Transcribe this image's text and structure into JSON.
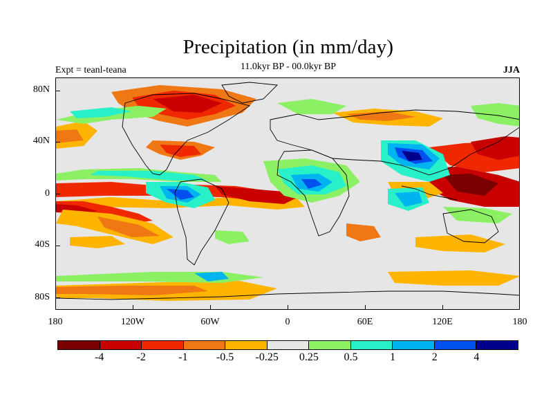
{
  "header": {
    "title": "Precipitation (in mm/day)",
    "subtitle": "11.0kyr BP - 00.0kyr BP",
    "left_label": "Expt = teanl-teana",
    "right_label": "JJA"
  },
  "map": {
    "ocean_land_background": "#e6e6e6",
    "y_axis_labels": [
      "80N",
      "40N",
      "0",
      "40S",
      "80S"
    ],
    "x_axis_labels": [
      "180",
      "120W",
      "60W",
      "0",
      "60E",
      "120E",
      "180"
    ]
  },
  "legend": {
    "colors": [
      "#7a0000",
      "#c80000",
      "#f02800",
      "#f07814",
      "#ffb400",
      "#e6e6e6",
      "#8cf064",
      "#28f0c8",
      "#00b4f0",
      "#0050f0",
      "#00008c"
    ],
    "labels": [
      "-4",
      "-2",
      "-1",
      "-0.5",
      "-0.25",
      "0.25",
      "0.5",
      "1",
      "2",
      "4"
    ]
  }
}
